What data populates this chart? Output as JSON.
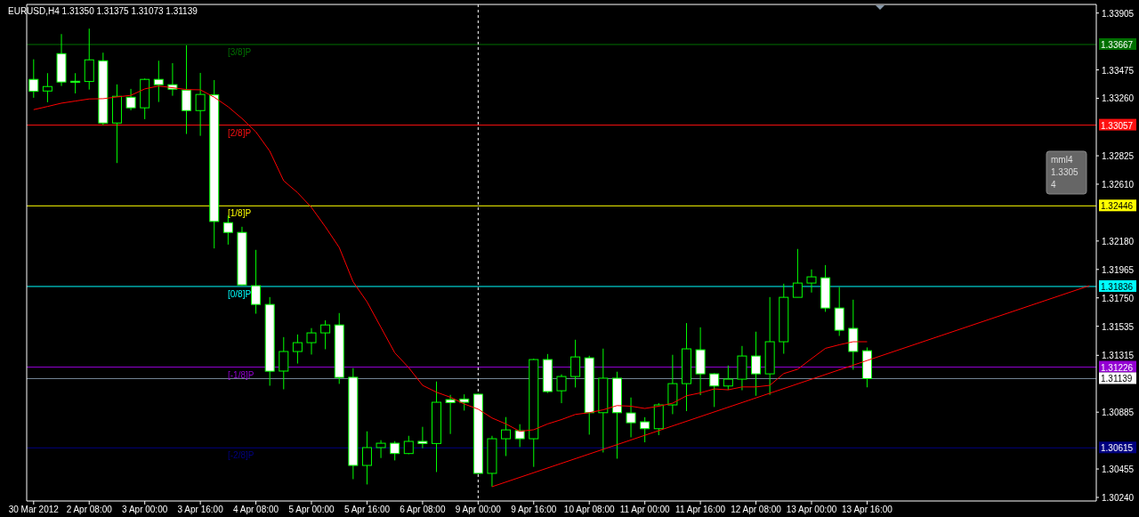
{
  "chart_data": {
    "type": "candlestick",
    "title": "EURUSD,H4  1.31350 1.31375 1.31073 1.31139",
    "categories": [
      "30 Mar 2012",
      null,
      null,
      null,
      "2 Apr 08:00",
      null,
      null,
      null,
      "3 Apr 00:00",
      null,
      null,
      null,
      "3 Apr 16:00",
      null,
      null,
      null,
      "4 Apr 08:00",
      null,
      null,
      null,
      "5 Apr 00:00",
      null,
      null,
      null,
      "5 Apr 16:00",
      null,
      null,
      null,
      "6 Apr 08:00",
      null,
      null,
      null,
      "9 Apr 00:00",
      null,
      null,
      null,
      "9 Apr 16:00",
      null,
      null,
      null,
      "10 Apr 08:00",
      null,
      null,
      null,
      "11 Apr 00:00",
      null,
      null,
      null,
      "11 Apr 16:00",
      null,
      null,
      null,
      "12 Apr 08:00",
      null,
      null,
      null,
      "13 Apr 00:00",
      null,
      null,
      null,
      "13 Apr 16:00",
      null,
      null,
      null,
      null,
      null,
      null,
      null,
      null,
      null,
      null,
      null,
      null,
      null,
      null,
      null,
      null
    ],
    "color": "#00ff00",
    "ohlc": [
      [
        1.33403,
        1.33555,
        1.33264,
        1.33313
      ],
      [
        1.33315,
        1.3345,
        1.3323,
        1.33349
      ],
      [
        1.33598,
        1.33746,
        1.33353,
        1.33383
      ],
      [
        1.33389,
        1.3345,
        1.33297,
        1.3338
      ],
      [
        1.33387,
        1.33787,
        1.33326,
        1.33551
      ],
      [
        1.33544,
        1.33605,
        1.33057,
        1.33073
      ],
      [
        1.33073,
        1.33365,
        1.3277,
        1.33275
      ],
      [
        1.33268,
        1.33331,
        1.33169,
        1.33188
      ],
      [
        1.33188,
        1.3341,
        1.33102,
        1.33403
      ],
      [
        1.33403,
        1.33544,
        1.33232,
        1.33363
      ],
      [
        1.33363,
        1.33526,
        1.33279,
        1.33329
      ],
      [
        1.33322,
        1.33661,
        1.3299,
        1.33167
      ],
      [
        1.33167,
        1.33452,
        1.32976,
        1.33289
      ],
      [
        1.33286,
        1.33398,
        1.32124,
        1.32328
      ],
      [
        1.32319,
        1.32373,
        1.32153,
        1.32245
      ],
      [
        1.32245,
        1.32288,
        1.31844,
        1.31848
      ],
      [
        1.31842,
        1.32113,
        1.3163,
        1.317
      ],
      [
        1.317,
        1.31756,
        1.31085,
        1.31195
      ],
      [
        1.31196,
        1.31453,
        1.31058,
        1.31344
      ],
      [
        1.31344,
        1.31473,
        1.31253,
        1.31411
      ],
      [
        1.31411,
        1.31521,
        1.31321,
        1.31485
      ],
      [
        1.31485,
        1.3158,
        1.31361,
        1.31545
      ],
      [
        1.31545,
        1.31635,
        1.31099,
        1.31148
      ],
      [
        1.31149,
        1.31218,
        1.30378,
        1.30482
      ],
      [
        1.30482,
        1.3074,
        1.30338,
        1.30617
      ],
      [
        1.30617,
        1.30673,
        1.30538,
        1.3065
      ],
      [
        1.3065,
        1.30666,
        1.3052,
        1.30572
      ],
      [
        1.30572,
        1.30706,
        1.30567,
        1.30664
      ],
      [
        1.30664,
        1.30774,
        1.30612,
        1.30648
      ],
      [
        1.30648,
        1.31117,
        1.30432,
        1.3096
      ],
      [
        1.3098,
        1.31016,
        1.3072,
        1.30957
      ],
      [
        1.30984,
        1.3102,
        1.30897,
        1.3096
      ],
      [
        1.31021,
        1.31025,
        1.30419,
        1.30422
      ],
      [
        1.30422,
        1.30706,
        1.30321,
        1.30684
      ],
      [
        1.30684,
        1.30848,
        1.30553,
        1.30751
      ],
      [
        1.30745,
        1.30794,
        1.30621,
        1.30684
      ],
      [
        1.30684,
        1.3129,
        1.30471,
        1.31283
      ],
      [
        1.31283,
        1.31325,
        1.3103,
        1.31041
      ],
      [
        1.31047,
        1.31171,
        1.30953,
        1.31155
      ],
      [
        1.31155,
        1.31433,
        1.31072,
        1.31303
      ],
      [
        1.31296,
        1.31312,
        1.30715,
        1.30881
      ],
      [
        1.30881,
        1.31366,
        1.3058,
        1.31142
      ],
      [
        1.31142,
        1.31191,
        1.30533,
        1.30881
      ],
      [
        1.30879,
        1.30996,
        1.30695,
        1.30805
      ],
      [
        1.30812,
        1.30847,
        1.30657,
        1.3076
      ],
      [
        1.3076,
        1.30953,
        1.30711,
        1.3094
      ],
      [
        1.3094,
        1.31319,
        1.3087,
        1.31101
      ],
      [
        1.31101,
        1.31559,
        1.30893,
        1.31364
      ],
      [
        1.31357,
        1.31527,
        1.31014,
        1.31175
      ],
      [
        1.31175,
        1.3118,
        1.30924,
        1.31083
      ],
      [
        1.31083,
        1.31238,
        1.31054,
        1.31135
      ],
      [
        1.31135,
        1.31386,
        1.31051,
        1.3131
      ],
      [
        1.3131,
        1.31494,
        1.31009,
        1.31175
      ],
      [
        1.31175,
        1.31756,
        1.31016,
        1.31418
      ],
      [
        1.31418,
        1.31857,
        1.31327,
        1.31754
      ],
      [
        1.31754,
        1.3212,
        1.31754,
        1.31862
      ],
      [
        1.31862,
        1.31965,
        1.3179,
        1.31909
      ],
      [
        1.31902,
        1.31998,
        1.31644,
        1.31673
      ],
      [
        1.31673,
        1.31832,
        1.31462,
        1.31505
      ],
      [
        1.31519,
        1.31736,
        1.31206,
        1.31344
      ],
      [
        1.3135,
        1.31375,
        1.31073,
        1.31139
      ],
      null,
      null,
      null,
      null,
      null,
      null,
      null,
      null,
      null,
      null,
      null,
      null,
      null,
      null,
      null,
      null
    ],
    "series": [
      {
        "type": "line",
        "color": "#ff0000",
        "values": [
          1.33174,
          1.33198,
          1.33223,
          1.33239,
          1.33255,
          1.33257,
          1.3327,
          1.33282,
          1.33331,
          1.33353,
          1.3334,
          1.33326,
          1.33324,
          1.33268,
          1.33196,
          1.33107,
          1.33006,
          1.3286,
          1.32636,
          1.32546,
          1.32434,
          1.32288,
          1.32131,
          1.31871,
          1.3172,
          1.31527,
          1.31334,
          1.31222,
          1.31088,
          1.31036,
          1.30998,
          1.30947,
          1.30908,
          1.30841,
          1.30796,
          1.3074,
          1.30752,
          1.30796,
          1.30829,
          1.30868,
          1.30881,
          1.30903,
          1.30935,
          1.3093,
          1.30913,
          1.3093,
          1.30953,
          1.31009,
          1.31031,
          1.31061,
          1.31054,
          1.31076,
          1.31076,
          1.31088,
          1.31177,
          1.3121,
          1.3129,
          1.31368,
          1.31395,
          1.31418,
          1.31418,
          null,
          null,
          null,
          null,
          null,
          null,
          null,
          null,
          null,
          null,
          null,
          null,
          null,
          null,
          null,
          null
        ]
      },
      {
        "type": "line",
        "color": "#ff0000",
        "values": [
          null,
          null,
          null,
          null,
          null,
          null,
          null,
          null,
          null,
          null,
          null,
          null,
          null,
          null,
          null,
          null,
          null,
          null,
          null,
          null,
          null,
          null,
          null,
          null,
          null,
          null,
          null,
          null,
          null,
          null,
          null,
          null,
          null,
          1.30321,
          null,
          null,
          null,
          null,
          null,
          null,
          null,
          null,
          null,
          null,
          null,
          null,
          null,
          null,
          null,
          null,
          null,
          null,
          null,
          null,
          null,
          null,
          null,
          null,
          null,
          null,
          null,
          null,
          null,
          null,
          null,
          null,
          null,
          null,
          null,
          null,
          null,
          null,
          null,
          null,
          null,
          null,
          1.31842
        ]
      }
    ],
    "ylim": [
      1.30213,
      1.3397
    ],
    "yticks": [
      1.33905,
      1.33475,
      {
        "value": 1.3326,
        "label": "1.33260"
      },
      1.32825,
      {
        "value": 1.3261,
        "label": "1.32610"
      },
      {
        "value": 1.3218,
        "label": "1.32180"
      },
      1.31965,
      {
        "value": 1.3175,
        "label": "1.31750"
      },
      1.31535,
      1.31315,
      1.30885,
      1.30455,
      {
        "value": 1.3024,
        "label": "1.30240"
      }
    ],
    "ref_lines": [
      {
        "axis": "y",
        "value": 1.33667,
        "label": "[3/8]P",
        "color": "#007000"
      },
      {
        "axis": "y",
        "value": 1.33057,
        "label": "[2/8]P",
        "color": "#ff1010"
      },
      {
        "axis": "y",
        "value": 1.32446,
        "label": "[1/8]P",
        "color": "#ffff00"
      },
      {
        "axis": "y",
        "value": 1.31836,
        "label": "[0/8]P",
        "color": "#00ffff"
      },
      {
        "axis": "y",
        "value": 1.31226,
        "label": "[-1/8]P",
        "color": "#9400d3"
      },
      {
        "axis": "y",
        "value": 1.30615,
        "label": "[-2/8]P",
        "color": "#000080"
      },
      {
        "axis": "y",
        "value": 1.31139,
        "label": null,
        "color": "#778899"
      },
      {
        "axis": "x",
        "value": "9 Apr 00:00",
        "label": null,
        "color": "#ffffff",
        "line_style": "dashed"
      }
    ],
    "annotations": [
      "mml4",
      "1.3305",
      "4",
      {
        "text": "1.33667",
        "y": 1.33667
      },
      {
        "text": "1.33057",
        "y": 1.33057
      },
      {
        "text": "1.32446",
        "y": 1.32446
      },
      {
        "text": "1.31836",
        "y": 1.31836
      },
      {
        "text": "1.31226",
        "y": 1.31226
      },
      {
        "text": "1.30615",
        "y": 1.30615
      },
      {
        "text": "1.31139",
        "y": 1.31139
      }
    ],
    "grid": false
  }
}
